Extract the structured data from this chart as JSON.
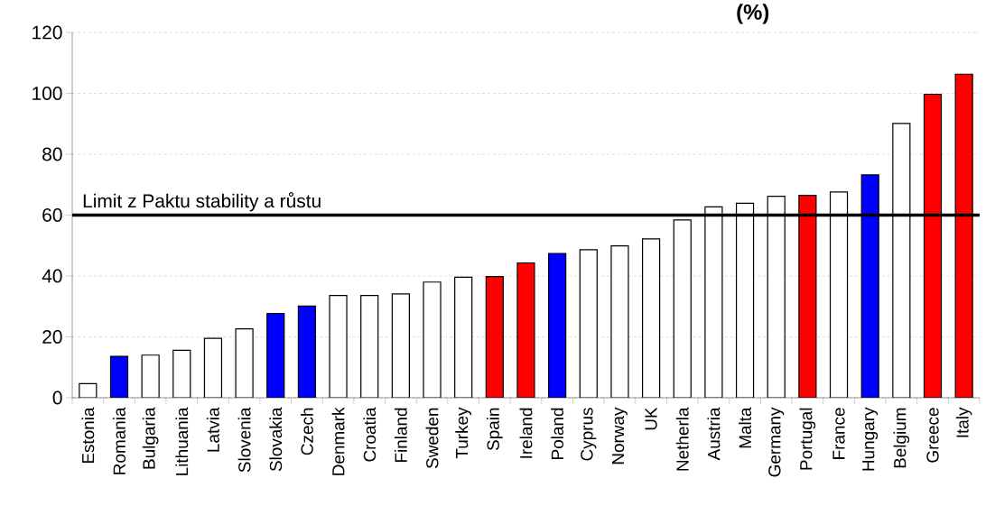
{
  "chart_data": {
    "type": "bar",
    "title": "(%)",
    "categories": [
      "Estonia",
      "Romania",
      "Bulgaria",
      "Lithuania",
      "Latvia",
      "Slovenia",
      "Slovakia",
      "Czech",
      "Denmark",
      "Croatia",
      "Finland",
      "Sweden",
      "Turkey",
      "Spain",
      "Ireland",
      "Poland",
      "Cyprus",
      "Norway",
      "UK",
      "Netherla",
      "Austria",
      "Malta",
      "Germany",
      "Portugal",
      "France",
      "Hungary",
      "Belgium",
      "Greece",
      "Italy"
    ],
    "values": [
      4.6,
      13.6,
      14.0,
      15.6,
      19.5,
      22.6,
      27.7,
      30.1,
      33.6,
      33.6,
      34.1,
      38.0,
      39.6,
      39.8,
      44.3,
      47.4,
      48.6,
      49.9,
      52.2,
      58.4,
      62.7,
      63.9,
      66.2,
      66.5,
      67.6,
      73.2,
      90.1,
      99.7,
      106.3
    ],
    "colors": [
      "#ffffff",
      "#0000ff",
      "#ffffff",
      "#ffffff",
      "#ffffff",
      "#ffffff",
      "#0000ff",
      "#0000ff",
      "#ffffff",
      "#ffffff",
      "#ffffff",
      "#ffffff",
      "#ffffff",
      "#ff0000",
      "#ff0000",
      "#0000ff",
      "#ffffff",
      "#ffffff",
      "#ffffff",
      "#ffffff",
      "#ffffff",
      "#ffffff",
      "#ffffff",
      "#ff0000",
      "#ffffff",
      "#0000ff",
      "#ffffff",
      "#ff0000",
      "#ff0000"
    ],
    "ylim": [
      0,
      120
    ],
    "yticks": [
      0,
      20,
      40,
      60,
      80,
      100,
      120
    ],
    "grid": "y",
    "ref_lines": [
      {
        "axis": "y",
        "value": 60,
        "label": "Limit z Paktu stability a růstu",
        "color": "#000000"
      }
    ]
  }
}
